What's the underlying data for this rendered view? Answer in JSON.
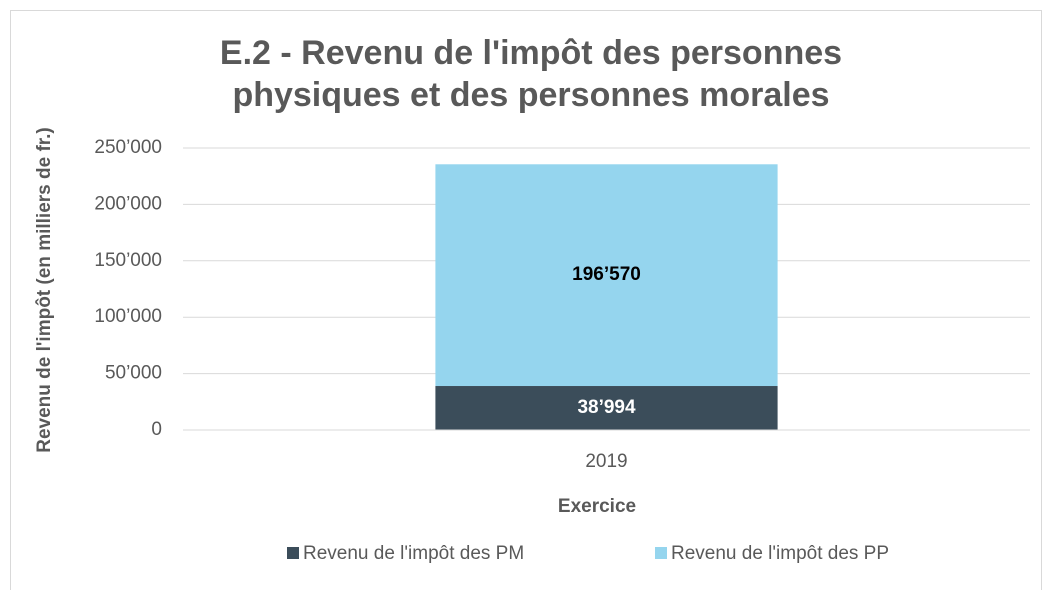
{
  "chart_data": {
    "type": "stacked_bar",
    "title": [
      "E.2 - Revenu de l'impôt des personnes",
      "physiques et des personnes morales"
    ],
    "y_label": "Revenu de l'impôt (en milliers de fr.)",
    "x_label": "Exercice",
    "categories": [
      "2019"
    ],
    "series": [
      {
        "name": "Revenu de l'impôt des PM",
        "color": "#3b4d5a",
        "values": [
          38994
        ],
        "value_labels": [
          "38’994"
        ]
      },
      {
        "name": "Revenu de l'impôt des PP",
        "color": "#95d5ee",
        "values": [
          196570
        ],
        "value_labels": [
          "196’570"
        ]
      }
    ],
    "ylim": [
      0,
      250000
    ],
    "yticks": [
      0,
      {
        "value": 50000,
        "label": "50’000"
      },
      {
        "value": 100000,
        "label": "100’000"
      },
      {
        "value": 150000,
        "label": "150’000"
      },
      {
        "value": 200000,
        "label": "200’000"
      },
      {
        "value": 250000,
        "label": "250’000"
      }
    ],
    "grid": true,
    "legend": "bottom"
  }
}
